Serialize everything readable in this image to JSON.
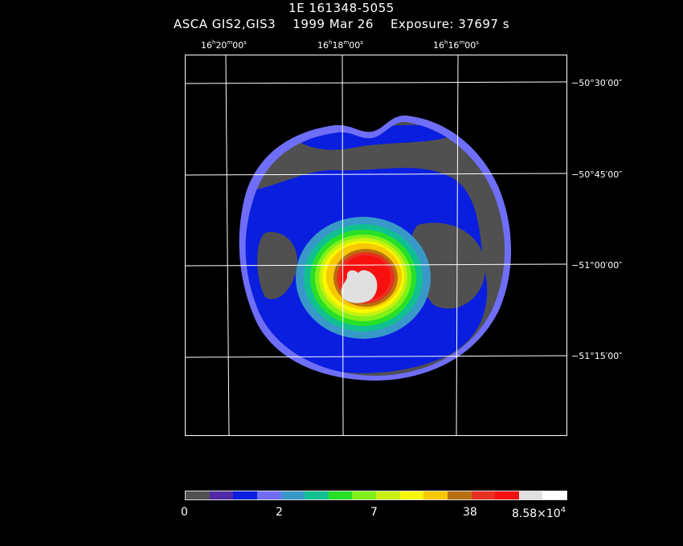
{
  "header": {
    "target": "1E 161348-5055",
    "instrument": "ASCA GIS2,GIS3",
    "date": "1999 Mar 26",
    "exposure": "Exposure: 37697 s"
  },
  "ra_labels": [
    {
      "h": "16",
      "m": "20",
      "s": "00"
    },
    {
      "h": "16",
      "m": "18",
      "s": "00"
    },
    {
      "h": "16",
      "m": "16",
      "s": "00"
    }
  ],
  "dec_labels": [
    "−50°30′00″",
    "−50°45′00″",
    "−51°00′00″",
    "−51°15′00″"
  ],
  "colorbar": {
    "colors": [
      "#505050",
      "#5028a8",
      "#0a1ee0",
      "#6e6ef8",
      "#3898c8",
      "#10c090",
      "#28e028",
      "#80f018",
      "#c8f010",
      "#f8f800",
      "#f8c800",
      "#b87010",
      "#e83020",
      "#f81010",
      "#e0e0e0",
      "#ffffff"
    ],
    "labels": [
      "0",
      "2",
      "7",
      "38"
    ],
    "max_mantissa": "8.58×10",
    "max_exponent": "4"
  },
  "colors": {
    "background": "#000000",
    "grid": "#ffffff",
    "detector": "#505050",
    "halo": "#6e6ef8"
  }
}
